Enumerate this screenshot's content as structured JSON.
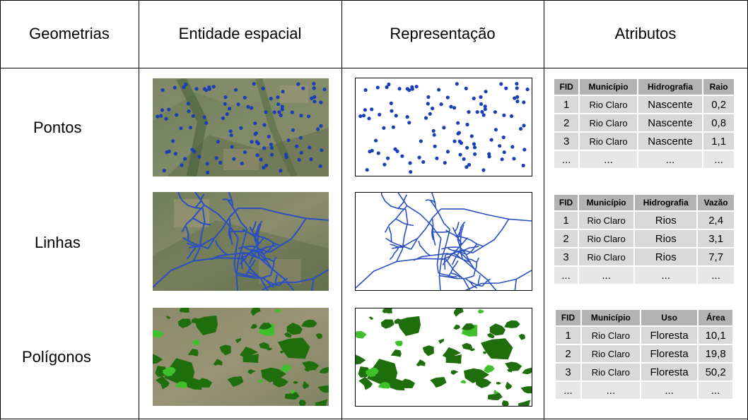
{
  "headers": {
    "geometrias": "Geometrias",
    "entidade": "Entidade espacial",
    "representacao": "Representação",
    "atributos": "Atributos"
  },
  "rows": {
    "pontos": "Pontos",
    "linhas": "Linhas",
    "poligonos": "Polígonos"
  },
  "tables": {
    "pontos": {
      "columns": [
        "FID",
        "Município",
        "Hidrografia",
        "Raio"
      ],
      "rows": [
        [
          "1",
          "Rio Claro",
          "Nascente",
          "0,2"
        ],
        [
          "2",
          "Rio Claro",
          "Nascente",
          "0,8"
        ],
        [
          "3",
          "Rio Claro",
          "Nascente",
          "1,1"
        ],
        [
          "...",
          "...",
          "...",
          "..."
        ]
      ]
    },
    "linhas": {
      "columns": [
        "FID",
        "Município",
        "Hidrografia",
        "Vazão"
      ],
      "rows": [
        [
          "1",
          "Rio Claro",
          "Rios",
          "2,4"
        ],
        [
          "2",
          "Rio Claro",
          "Rios",
          "3,1"
        ],
        [
          "3",
          "Rio Claro",
          "Rios",
          "7,7"
        ],
        [
          "...",
          "...",
          "...",
          "..."
        ]
      ]
    },
    "poligonos": {
      "columns": [
        "FID",
        "Município",
        "Uso",
        "Área"
      ],
      "rows": [
        [
          "1",
          "Rio Claro",
          "Floresta",
          "10,1"
        ],
        [
          "2",
          "Rio Claro",
          "Floresta",
          "19,8"
        ],
        [
          "3",
          "Rio Claro",
          "Floresta",
          "50,2"
        ],
        [
          "...",
          "...",
          "...",
          "..."
        ]
      ]
    }
  },
  "colors": {
    "points": "#1a3fb5",
    "lines": "#2a4fc0",
    "polygons": "#1f6e0d",
    "polygon_light": "#3fbf2a"
  }
}
